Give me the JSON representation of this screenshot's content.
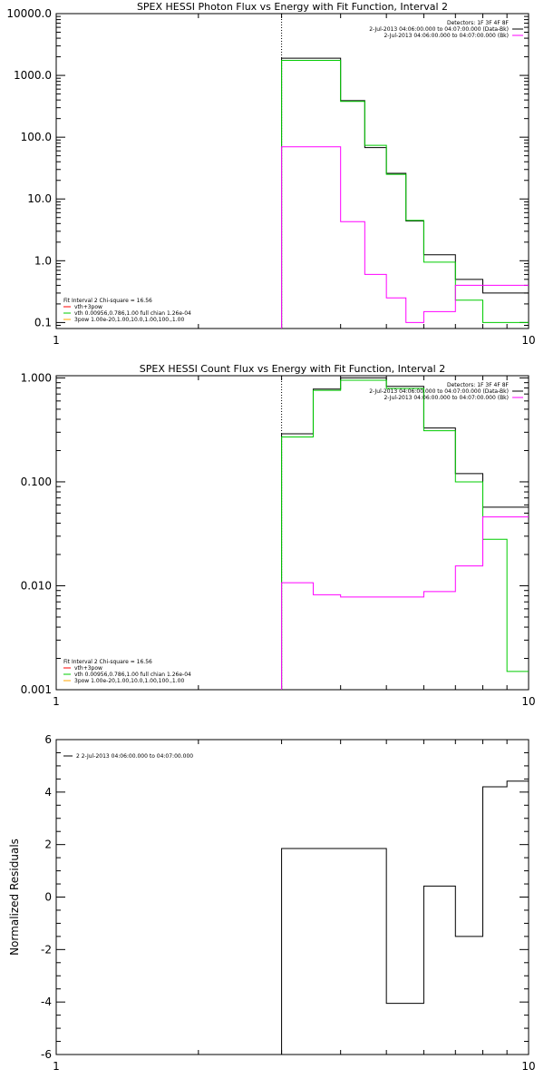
{
  "chart_data": [
    {
      "type": "line",
      "title": "SPEX HESSI Photon Flux vs Energy with Fit Function, Interval 2",
      "xscale": "log",
      "yscale": "log",
      "xlim": [
        1,
        10
      ],
      "ylim": [
        0.08,
        10000
      ],
      "xticks": [
        "1",
        "10"
      ],
      "yticks": [
        {
          "value": 10000,
          "label": "10000.0"
        },
        {
          "value": 1000,
          "label": "1000.0"
        },
        {
          "value": 100,
          "label": "100.0"
        },
        {
          "value": 10,
          "label": "10.0"
        },
        {
          "value": 1,
          "label": "1.0"
        },
        {
          "value": 0.1,
          "label": "0.1"
        }
      ],
      "vline_x": 3.0,
      "legend_topright": [
        {
          "text": "Detectors: 1F 3F 4F 8F",
          "color": ""
        },
        {
          "text": "2-Jul-2013 04:06:00.000 to 04:07:00.000 (Data-Bk)",
          "color": "#000000"
        },
        {
          "text": "2-Jul-2013 04:06:00.000 to 04:07:00.000 (Bk)",
          "color": "#ff00ff"
        }
      ],
      "legend_bottomleft": [
        {
          "text": "Fit Interval 2   Chi-square = 16.56",
          "color": ""
        },
        {
          "text": "vth+3pow",
          "color": "#ff0000"
        },
        {
          "text": "vth 0.00956,0.786,1.00  full chian 1.26e-04",
          "color": "#00cc00"
        },
        {
          "text": "3pow 1.00e-20,1.00,10.0,1.00,100.,1.00",
          "color": "#ffa500"
        }
      ],
      "edges": [
        3.0,
        3.5,
        4.0,
        4.5,
        5.0,
        5.5,
        6.0,
        7.0,
        8.0,
        9.0,
        10.0
      ],
      "series": [
        {
          "color": "#000000",
          "values": [
            1900,
            1900,
            390,
            68,
            26,
            4.4,
            1.25,
            0.5,
            0.3,
            0.3
          ]
        },
        {
          "color": "#00cc00",
          "values": [
            1750,
            1750,
            380,
            74,
            25,
            4.5,
            0.95,
            0.23,
            0.1,
            0.1
          ]
        },
        {
          "color": "#ff00ff",
          "values": [
            70,
            70,
            4.3,
            0.6,
            0.25,
            0.1,
            0.15,
            0.4,
            0.4,
            0.4
          ]
        }
      ]
    },
    {
      "type": "line",
      "title": "SPEX HESSI Count Flux vs Energy with Fit Function, Interval 2",
      "xscale": "log",
      "yscale": "log",
      "xlim": [
        1,
        10
      ],
      "ylim": [
        0.001,
        1.05
      ],
      "xticks": [
        "1",
        "10"
      ],
      "yticks": [
        {
          "value": 1,
          "label": "1.000"
        },
        {
          "value": 0.1,
          "label": "0.100"
        },
        {
          "value": 0.01,
          "label": "0.010"
        },
        {
          "value": 0.001,
          "label": "0.001"
        }
      ],
      "vline_x": 3.0,
      "legend_topright": [
        {
          "text": "Detectors: 1F 3F 4F 8F",
          "color": ""
        },
        {
          "text": "2-Jul-2013 04:06:00.000 to 04:07:00.000 (Data-Bk)",
          "color": "#000000"
        },
        {
          "text": "2-Jul-2013 04:06:00.000 to 04:07:00.000 (Bk)",
          "color": "#ff00ff"
        }
      ],
      "legend_bottomleft": [
        {
          "text": "Fit Interval 2   Chi-square = 16.56",
          "color": ""
        },
        {
          "text": "vth+3pow",
          "color": "#ff0000"
        },
        {
          "text": "vth 0.00956,0.786,1.00  full chian 1.26e-04",
          "color": "#00cc00"
        },
        {
          "text": "3pow 1.00e-20,1.00,10.0,1.00,100.,1.00",
          "color": "#ffa500"
        }
      ],
      "edges": [
        3.0,
        3.5,
        4.0,
        5.0,
        6.0,
        7.0,
        8.0,
        9.0,
        10.0
      ],
      "series": [
        {
          "color": "#000000",
          "values": [
            0.29,
            0.78,
            1.0,
            0.83,
            0.33,
            0.12,
            0.057,
            0.057
          ]
        },
        {
          "color": "#00cc00",
          "values": [
            0.27,
            0.76,
            0.95,
            0.79,
            0.31,
            0.1,
            0.028,
            0.0015
          ]
        },
        {
          "color": "#ff00ff",
          "values": [
            0.0107,
            0.0082,
            0.0078,
            0.0078,
            0.0088,
            0.0155,
            0.046,
            0.046
          ]
        }
      ]
    },
    {
      "type": "line",
      "title": "",
      "xscale": "log",
      "yscale": "linear",
      "xlim": [
        1,
        10
      ],
      "ylim": [
        -6,
        6
      ],
      "xticks": [
        "1",
        "10"
      ],
      "yticks": [
        {
          "value": 6,
          "label": "6"
        },
        {
          "value": 4,
          "label": "4"
        },
        {
          "value": 2,
          "label": "2"
        },
        {
          "value": 0,
          "label": "0"
        },
        {
          "value": -2,
          "label": "-2"
        },
        {
          "value": -4,
          "label": "-4"
        },
        {
          "value": -6,
          "label": "-6"
        }
      ],
      "ylabel": "Normalized Residuals",
      "legend_topleft": [
        {
          "text": "2  2-Jul-2013 04:06:00.000 to 04:07:00.000",
          "color": "#000000"
        }
      ],
      "edges": [
        3.0,
        5.0,
        6.0,
        7.0,
        8.0,
        9.0,
        10.0
      ],
      "series": [
        {
          "color": "#000000",
          "values": [
            1.85,
            -4.05,
            0.42,
            -1.5,
            4.2,
            4.42
          ]
        }
      ]
    }
  ]
}
